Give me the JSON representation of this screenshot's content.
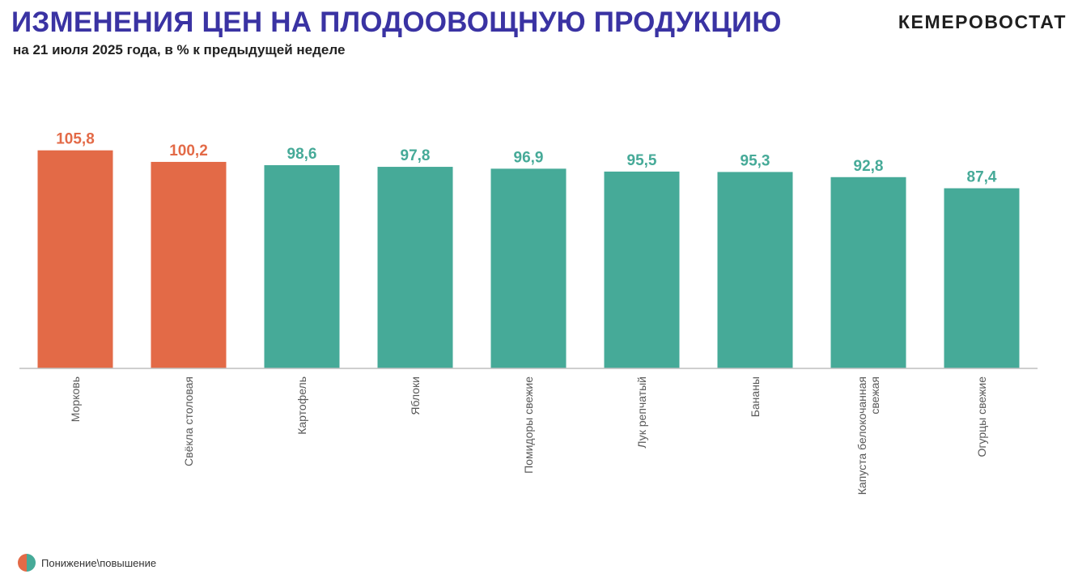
{
  "header": {
    "title": "ИЗМЕНЕНИЯ ЦЕН НА ПЛОДООВОЩНУЮ ПРОДУКЦИЮ",
    "subtitle": "на 21 июля 2025 года, в % к предыдущей неделе",
    "brand": "КЕМЕРОВОСТАТ"
  },
  "legend": {
    "label": "Понижение\\повышение"
  },
  "colors": {
    "increase": "#e36a47",
    "decrease": "#46aa98",
    "axis": "#bfbfbf",
    "category_label": "#595959"
  },
  "chart_data": {
    "type": "bar",
    "categories": [
      [
        "Морковь"
      ],
      [
        "Свёкла столовая"
      ],
      [
        "Картофель"
      ],
      [
        "Яблоки"
      ],
      [
        "Помидоры свежие"
      ],
      [
        "Лук репчатый"
      ],
      [
        "Бананы"
      ],
      [
        "Капуста белокочанная",
        "свежая"
      ],
      [
        "Огурцы свежие"
      ]
    ],
    "values": [
      105.8,
      100.2,
      98.6,
      97.8,
      96.9,
      95.5,
      95.3,
      92.8,
      87.4
    ],
    "value_labels": [
      "105,8",
      "100,2",
      "98,6",
      "97,8",
      "96,9",
      "95,5",
      "95,3",
      "92,8",
      "87,4"
    ],
    "ylim": [
      0,
      110
    ],
    "color_rule": "value > 100 → increase color, otherwise decrease color"
  }
}
